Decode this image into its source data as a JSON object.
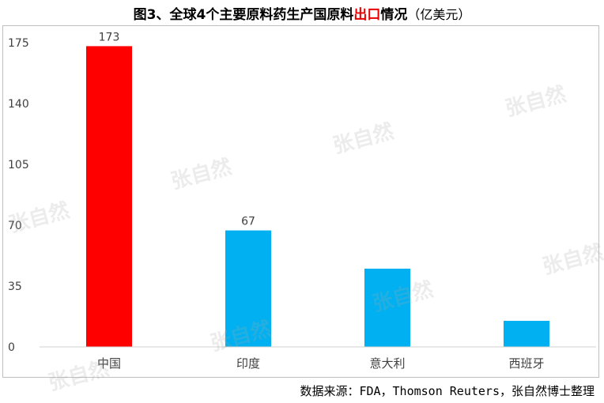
{
  "title": {
    "prefix": "图3、全球4个主要原料药生产国原料",
    "highlight": "出口",
    "suffix": "情况",
    "unit": "（亿美元）"
  },
  "source": "数据来源：FDA，Thomson Reuters，张自然博士整理",
  "watermark": "张自然",
  "colors": {
    "highlight": "#ff0000",
    "normal": "#00b0f0"
  },
  "chart_data": {
    "type": "bar",
    "categories": [
      "中国",
      "印度",
      "意大利",
      "西班牙"
    ],
    "values": [
      173,
      67,
      45,
      15
    ],
    "data_labels": [
      "173",
      "67",
      "",
      ""
    ],
    "ylim": [
      0,
      175
    ],
    "yticks": [
      0,
      35,
      70,
      105,
      140,
      175
    ],
    "grid": false,
    "bar_colors": [
      "#ff0000",
      "#00b0f0",
      "#00b0f0",
      "#00b0f0"
    ]
  }
}
